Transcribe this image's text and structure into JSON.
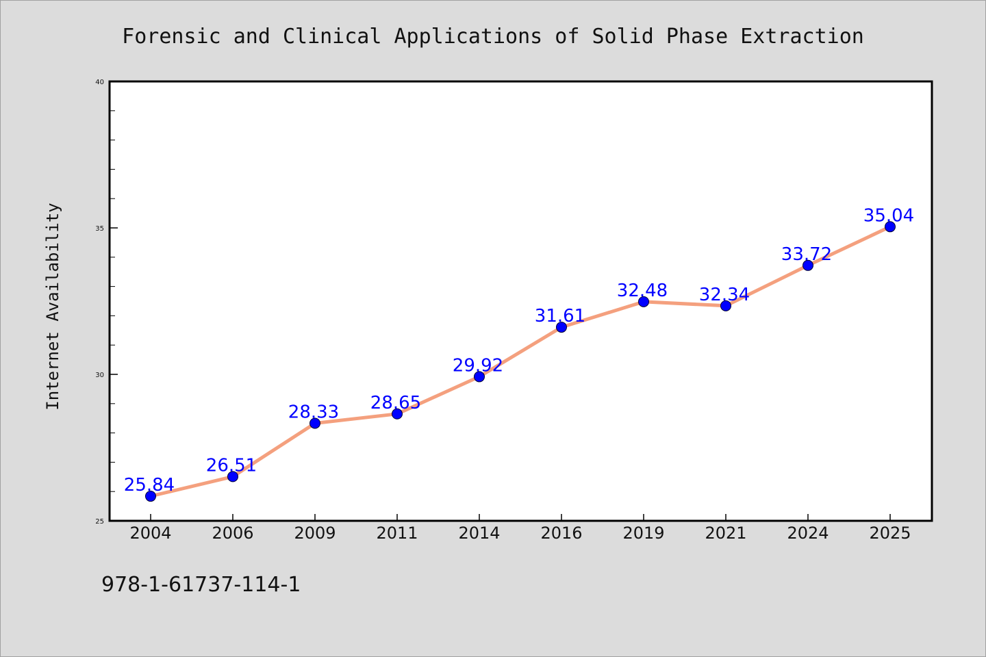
{
  "chart_data": {
    "type": "line",
    "title": "Forensic and Clinical Applications of Solid Phase Extraction",
    "xlabel": "",
    "ylabel": "Internet Availability",
    "categories": [
      "2004",
      "2006",
      "2009",
      "2011",
      "2014",
      "2016",
      "2019",
      "2021",
      "2024",
      "2025"
    ],
    "series": [
      {
        "values": [
          25.84,
          26.51,
          28.33,
          28.65,
          29.92,
          31.61,
          32.48,
          32.34,
          33.72,
          35.04
        ],
        "data_labels": [
          "25.84",
          "26.51",
          "28.33",
          "28.65",
          "29.92",
          "31.61",
          "32.48",
          "32.34",
          "33.72",
          "35.04"
        ]
      }
    ],
    "ylim": [
      25,
      40
    ],
    "yticks": [
      "25",
      "30",
      "35",
      "40"
    ],
    "grid": false,
    "line_color": "#f4a07e",
    "marker_color": "#0000ff",
    "label_color": "#0000ff"
  },
  "footnote": "978-1-61737-114-1"
}
